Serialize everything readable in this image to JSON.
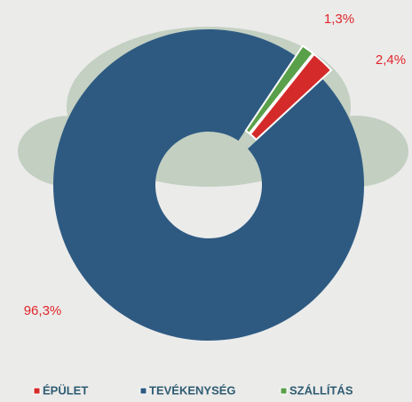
{
  "chart_data": {
    "type": "donut",
    "categories": [
      "ÉPÜLET",
      "TEVÉKENYSÉG",
      "SZÁLLÍTÁS"
    ],
    "values": [
      2.4,
      96.3,
      1.3
    ],
    "value_labels": [
      "2,4%",
      "96,3%",
      "1,3%"
    ],
    "colors": [
      "#d42a2a",
      "#2e5a82",
      "#5aa04a"
    ]
  }
}
